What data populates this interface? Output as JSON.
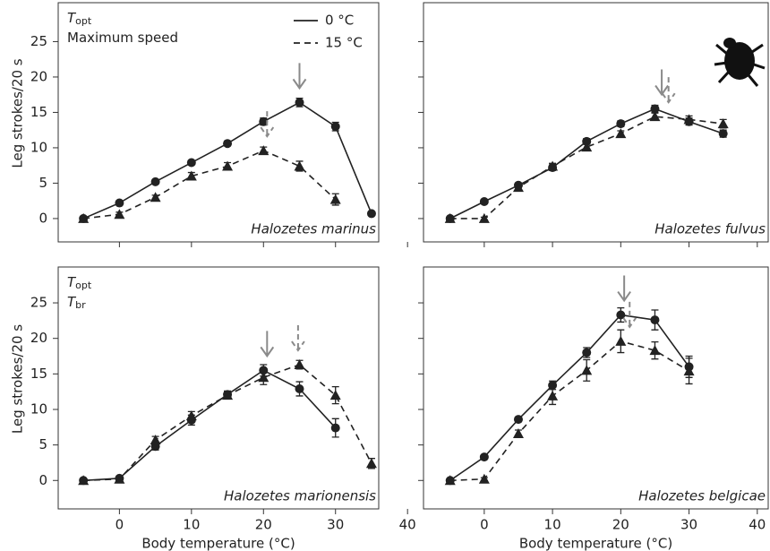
{
  "chart_data": [
    {
      "type": "line",
      "title": "Halozetes marinus",
      "notes": [
        {
          "symbol": "T",
          "subscript": "opt"
        },
        {
          "text": "Maximum speed"
        }
      ],
      "legend": true,
      "ylabel": "Leg strokes/20 s",
      "show_x_tick_labels": false,
      "show_y_tick_labels": true,
      "x": [
        -5,
        0,
        5,
        10,
        15,
        20,
        25,
        30,
        35
      ],
      "xlim": [
        -8.5,
        36
      ],
      "ylim": [
        -3.3,
        30.5
      ],
      "xticks": [
        0,
        10,
        20,
        30,
        40
      ],
      "yticks": [
        0,
        5,
        10,
        15,
        20,
        25
      ],
      "series": [
        {
          "name": "0 °C",
          "color": "#222222",
          "dash": false,
          "marker": "circle",
          "topt": 25,
          "values": [
            0,
            2.2,
            5.2,
            7.9,
            10.6,
            13.7,
            16.4,
            13.0,
            0.7
          ],
          "errors": [
            0.2,
            0.3,
            0.3,
            0.3,
            0.3,
            0.5,
            0.6,
            0.6,
            0.2
          ]
        },
        {
          "name": "15 °C",
          "color": "#222222",
          "dash": true,
          "marker": "triangle",
          "topt": 20.5,
          "values": [
            0,
            0.6,
            3.0,
            6.0,
            7.4,
            9.6,
            7.4,
            2.7,
            null
          ],
          "errors": [
            0.2,
            0.3,
            0.3,
            0.5,
            0.5,
            0.5,
            0.7,
            0.8,
            null
          ]
        }
      ]
    },
    {
      "type": "line",
      "title": "Halozetes fulvus",
      "legend": false,
      "show_x_tick_labels": false,
      "show_y_tick_labels": false,
      "x": [
        -5,
        0,
        5,
        10,
        15,
        20,
        25,
        30,
        35
      ],
      "xlim": [
        -8.9,
        41.6
      ],
      "ylim": [
        -3.3,
        30.5
      ],
      "xticks": [
        0,
        10,
        20,
        30,
        40
      ],
      "yticks": [
        0,
        5,
        10,
        15,
        20,
        25
      ],
      "series": [
        {
          "name": "0 °C",
          "color": "#222222",
          "dash": false,
          "marker": "circle",
          "topt": 26,
          "values": [
            0,
            2.4,
            4.7,
            7.2,
            10.9,
            13.4,
            15.5,
            13.7,
            12.0
          ],
          "errors": [
            0.2,
            0.3,
            0.3,
            0.4,
            0.4,
            0.4,
            0.5,
            0.5,
            0.5
          ]
        },
        {
          "name": "15 °C",
          "color": "#222222",
          "dash": true,
          "marker": "triangle",
          "topt": 27,
          "values": [
            0,
            0,
            4.4,
            7.4,
            10.1,
            12.0,
            14.4,
            14.0,
            13.4
          ],
          "errors": [
            0.2,
            0.2,
            0.3,
            0.4,
            0.4,
            0.4,
            0.5,
            0.5,
            0.6
          ]
        }
      ]
    },
    {
      "type": "line",
      "title": "Halozetes marionensis",
      "notes": [
        {
          "symbol": "T",
          "subscript": "opt"
        },
        {
          "symbol": "T",
          "subscript": "br"
        }
      ],
      "legend": false,
      "ylabel": "Leg strokes/20 s",
      "xlabel": "Body temperature (°C)",
      "show_x_tick_labels": true,
      "show_y_tick_labels": true,
      "x": [
        -5,
        0,
        5,
        10,
        15,
        20,
        25,
        30,
        35
      ],
      "xlim": [
        -8.5,
        36
      ],
      "ylim": [
        -4,
        30.05
      ],
      "xticks": [
        0,
        10,
        20,
        30,
        40
      ],
      "yticks": [
        0,
        5,
        10,
        15,
        20,
        25
      ],
      "series": [
        {
          "name": "0 °C",
          "color": "#222222",
          "dash": false,
          "marker": "circle",
          "topt": 20.5,
          "values": [
            0,
            0.3,
            4.8,
            8.5,
            12.1,
            15.5,
            12.9,
            7.4,
            null
          ],
          "errors": [
            0.2,
            0.2,
            0.5,
            0.7,
            0.5,
            0.8,
            1.0,
            1.3,
            null
          ]
        },
        {
          "name": "15 °C",
          "color": "#222222",
          "dash": true,
          "marker": "triangle",
          "topt": 24.8,
          "values": [
            0,
            0.2,
            5.7,
            9.1,
            12.0,
            14.5,
            16.3,
            12.0,
            2.4
          ],
          "errors": [
            0.2,
            0.2,
            0.5,
            0.6,
            0.5,
            1.0,
            0.6,
            1.2,
            0.7
          ]
        }
      ]
    },
    {
      "type": "line",
      "title": "Halozetes belgicae",
      "legend": false,
      "xlabel": "Body temperature (°C)",
      "show_x_tick_labels": true,
      "show_y_tick_labels": false,
      "x": [
        -5,
        0,
        5,
        10,
        15,
        20,
        25,
        30,
        35
      ],
      "xlim": [
        -8.9,
        41.6
      ],
      "ylim": [
        -4,
        30.05
      ],
      "xticks": [
        0,
        10,
        20,
        30,
        40
      ],
      "yticks": [
        0,
        5,
        10,
        15,
        20,
        25
      ],
      "series": [
        {
          "name": "0 °C",
          "color": "#222222",
          "dash": false,
          "marker": "circle",
          "topt": 20.5,
          "values": [
            0,
            3.3,
            8.6,
            13.4,
            18.0,
            23.3,
            22.6,
            16.0,
            null
          ],
          "errors": [
            0.2,
            0.2,
            0.3,
            0.6,
            0.7,
            1.0,
            1.4,
            1.5,
            null
          ]
        },
        {
          "name": "15 °C",
          "color": "#222222",
          "dash": true,
          "marker": "triangle",
          "topt": 21.3,
          "values": [
            0,
            0.2,
            6.6,
            11.9,
            15.5,
            19.6,
            18.3,
            15.4,
            null
          ],
          "errors": [
            0.2,
            0.2,
            0.5,
            1.2,
            1.5,
            1.6,
            1.2,
            1.8,
            null
          ]
        }
      ]
    }
  ]
}
